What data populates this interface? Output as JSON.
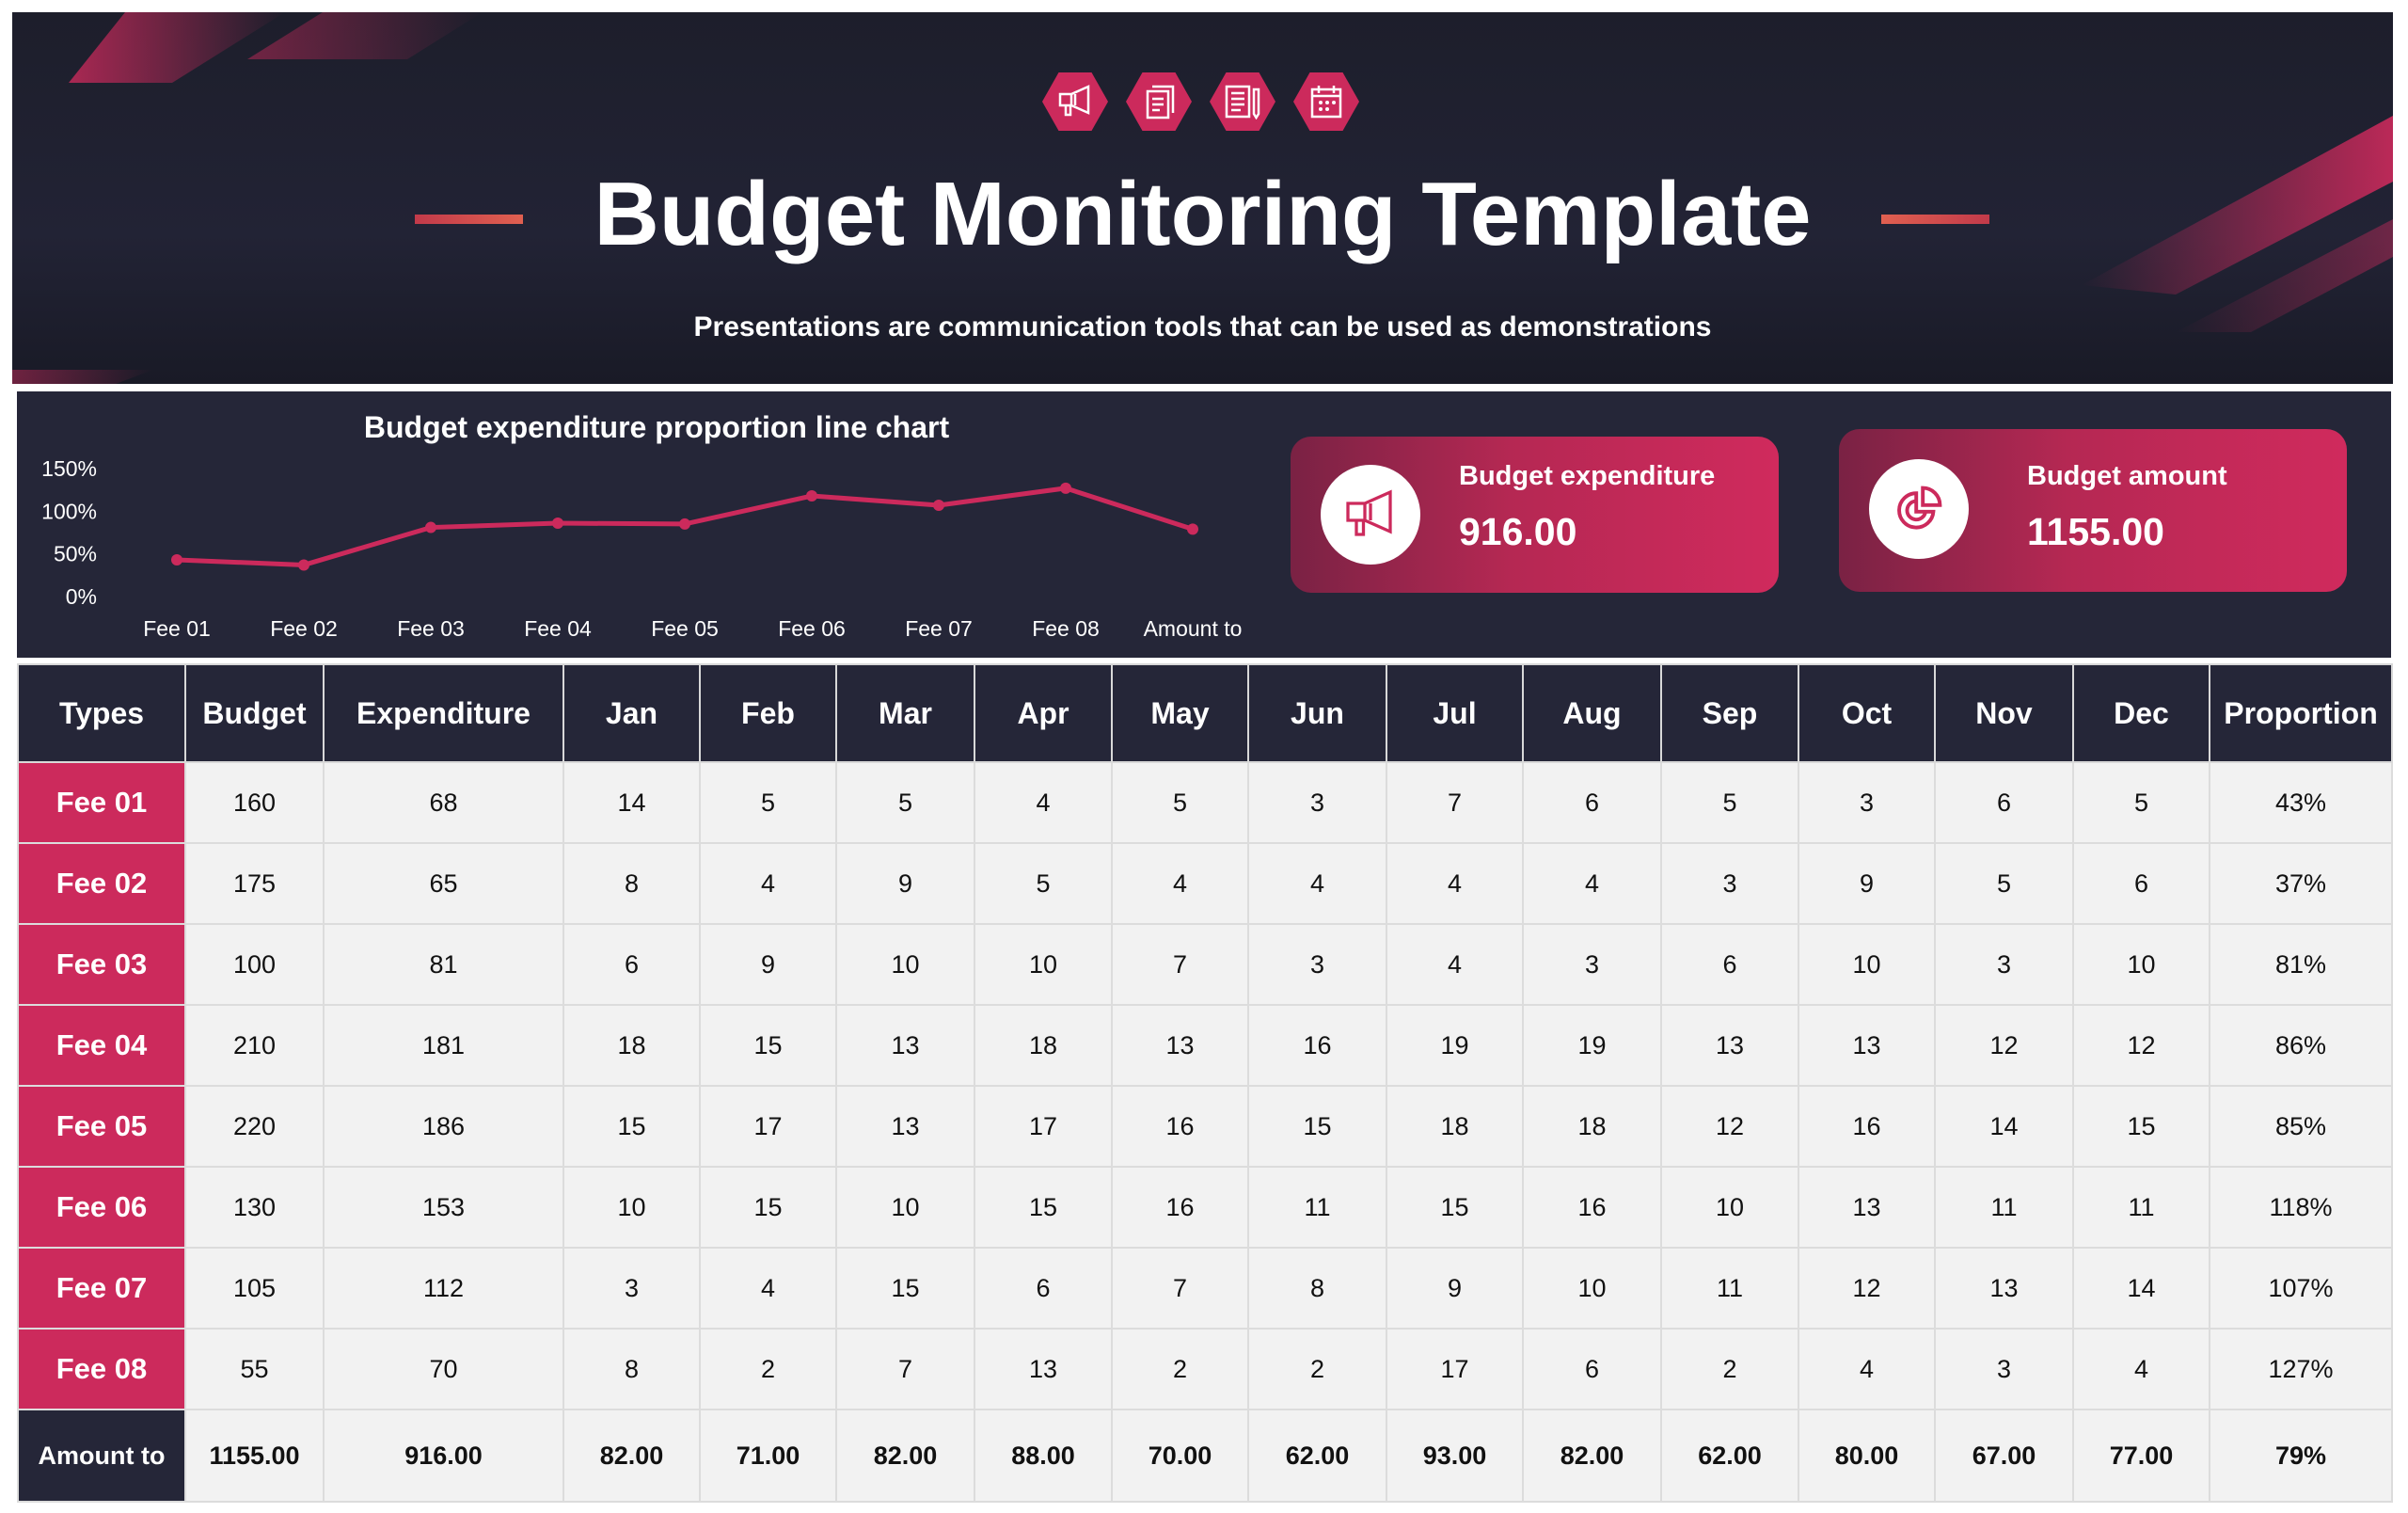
{
  "header": {
    "title": "Budget Monitoring Template",
    "subtitle": "Presentations are communication tools that can be used as demonstrations",
    "icons": [
      "megaphone-icon",
      "documents-icon",
      "document-pencil-icon",
      "calendar-icon"
    ]
  },
  "colors": {
    "dark": "#252638",
    "accent": "#cc2a5c",
    "cell": "#f2f2f2"
  },
  "cards": [
    {
      "label": "Budget expenditure",
      "value": "916.00",
      "icon": "megaphone-icon"
    },
    {
      "label": "Budget amount",
      "value": "1155.00",
      "icon": "pie-chart-icon"
    }
  ],
  "chart_data": {
    "type": "line",
    "title": "Budget expenditure proportion line chart",
    "categories": [
      "Fee 01",
      "Fee 02",
      "Fee 03",
      "Fee 04",
      "Fee 05",
      "Fee 06",
      "Fee 07",
      "Fee 08",
      "Amount to"
    ],
    "values": [
      43,
      37,
      81,
      86,
      85,
      118,
      107,
      127,
      79
    ],
    "y_ticks": [
      "150%",
      "100%",
      "50%",
      "0%"
    ],
    "ylim": [
      0,
      150
    ],
    "grid": false,
    "legend": "none"
  },
  "table": {
    "headers": [
      "Types",
      "Budget",
      "Expenditure",
      "Jan",
      "Feb",
      "Mar",
      "Apr",
      "May",
      "Jun",
      "Jul",
      "Aug",
      "Sep",
      "Oct",
      "Nov",
      "Dec",
      "Proportion"
    ],
    "rows": [
      [
        "Fee 01",
        "160",
        "68",
        "14",
        "5",
        "5",
        "4",
        "5",
        "3",
        "7",
        "6",
        "5",
        "3",
        "6",
        "5",
        "43%"
      ],
      [
        "Fee 02",
        "175",
        "65",
        "8",
        "4",
        "9",
        "5",
        "4",
        "4",
        "4",
        "4",
        "3",
        "9",
        "5",
        "6",
        "37%"
      ],
      [
        "Fee 03",
        "100",
        "81",
        "6",
        "9",
        "10",
        "10",
        "7",
        "3",
        "4",
        "3",
        "6",
        "10",
        "3",
        "10",
        "81%"
      ],
      [
        "Fee 04",
        "210",
        "181",
        "18",
        "15",
        "13",
        "18",
        "13",
        "16",
        "19",
        "19",
        "13",
        "13",
        "12",
        "12",
        "86%"
      ],
      [
        "Fee 05",
        "220",
        "186",
        "15",
        "17",
        "13",
        "17",
        "16",
        "15",
        "18",
        "18",
        "12",
        "16",
        "14",
        "15",
        "85%"
      ],
      [
        "Fee 06",
        "130",
        "153",
        "10",
        "15",
        "10",
        "15",
        "16",
        "11",
        "15",
        "16",
        "10",
        "13",
        "11",
        "11",
        "118%"
      ],
      [
        "Fee 07",
        "105",
        "112",
        "3",
        "4",
        "15",
        "6",
        "7",
        "8",
        "9",
        "10",
        "11",
        "12",
        "13",
        "14",
        "107%"
      ],
      [
        "Fee 08",
        "55",
        "70",
        "8",
        "2",
        "7",
        "13",
        "2",
        "2",
        "17",
        "6",
        "2",
        "4",
        "3",
        "4",
        "127%"
      ]
    ],
    "total": [
      "Amount to",
      "1155.00",
      "916.00",
      "82.00",
      "71.00",
      "82.00",
      "88.00",
      "70.00",
      "62.00",
      "93.00",
      "82.00",
      "62.00",
      "80.00",
      "67.00",
      "77.00",
      "79%"
    ]
  }
}
